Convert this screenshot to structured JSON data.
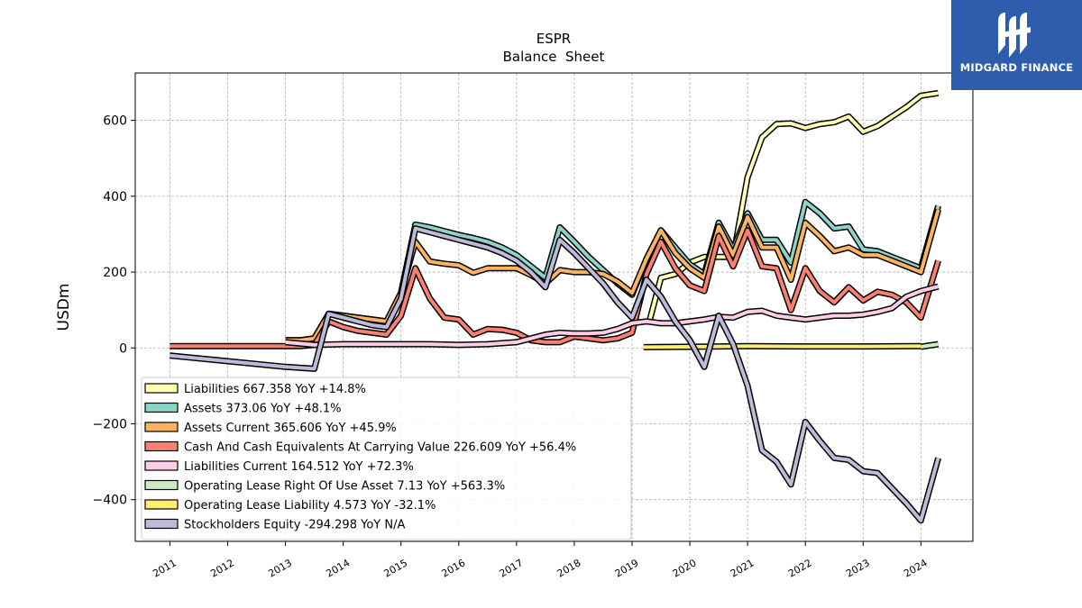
{
  "brand": {
    "name": "MIDGARD FINANCE",
    "logo_icon": "midgard-m-icon",
    "bg_color": "#2f5dad"
  },
  "chart_data": {
    "type": "line",
    "title": "ESPR",
    "subtitle": "Balance  Sheet",
    "xlabel": "",
    "ylabel": "USDm",
    "xlim": [
      2010.4,
      2024.9
    ],
    "ylim": [
      -510,
      725
    ],
    "yticks": [
      -400,
      -200,
      0,
      200,
      400,
      600
    ],
    "xticks": [
      "2011",
      "2012",
      "2013",
      "2014",
      "2015",
      "2016",
      "2017",
      "2018",
      "2019",
      "2020",
      "2021",
      "2022",
      "2023",
      "2024"
    ],
    "grid": true,
    "legend_position": "lower-left",
    "series": [
      {
        "name": "Liabilities",
        "legend": "Liabilities  667.358 YoY +14.8%",
        "color": "#ffffb3",
        "x": [
          2019.3,
          2019.5,
          2019.75,
          2020.0,
          2020.25,
          2020.5,
          2020.75,
          2021.0,
          2021.25,
          2021.5,
          2021.75,
          2022.0,
          2022.25,
          2022.5,
          2022.75,
          2023.0,
          2023.25,
          2023.5,
          2023.75,
          2024.0,
          2024.3
        ],
        "y": [
          70,
          185,
          195,
          225,
          240,
          240,
          240,
          450,
          555,
          590,
          592,
          580,
          590,
          595,
          610,
          570,
          585,
          610,
          635,
          665,
          672
        ]
      },
      {
        "name": "Assets",
        "legend": "Assets  373.06 YoY +48.1%",
        "color": "#8dd3c7",
        "x": [
          2013.0,
          2013.25,
          2013.5,
          2013.75,
          2014.0,
          2014.25,
          2014.5,
          2014.75,
          2015.0,
          2015.25,
          2015.5,
          2015.75,
          2016.0,
          2016.25,
          2016.5,
          2016.75,
          2017.0,
          2017.25,
          2017.5,
          2017.75,
          2018.0,
          2018.25,
          2018.5,
          2018.75,
          2019.0,
          2019.25,
          2019.5,
          2019.75,
          2020.0,
          2020.25,
          2020.5,
          2020.75,
          2021.0,
          2021.25,
          2021.5,
          2021.75,
          2022.0,
          2022.25,
          2022.5,
          2022.75,
          2023.0,
          2023.25,
          2023.5,
          2023.75,
          2024.0,
          2024.3
        ],
        "y": [
          20,
          20,
          25,
          90,
          85,
          80,
          75,
          70,
          145,
          325,
          318,
          308,
          298,
          290,
          280,
          265,
          245,
          215,
          185,
          318,
          280,
          240,
          205,
          170,
          140,
          235,
          310,
          265,
          220,
          195,
          330,
          260,
          355,
          285,
          285,
          225,
          385,
          355,
          315,
          320,
          260,
          255,
          240,
          225,
          210,
          375
        ]
      },
      {
        "name": "Assets Current",
        "legend": "Assets Current  365.606 YoY +45.9%",
        "color": "#fdb462",
        "x": [
          2013.0,
          2013.25,
          2013.5,
          2013.75,
          2014.0,
          2014.25,
          2014.5,
          2014.75,
          2015.0,
          2015.25,
          2015.5,
          2015.75,
          2016.0,
          2016.25,
          2016.5,
          2016.75,
          2017.0,
          2017.25,
          2017.5,
          2017.75,
          2018.0,
          2018.25,
          2018.5,
          2018.75,
          2019.0,
          2019.25,
          2019.5,
          2019.75,
          2020.0,
          2020.25,
          2020.5,
          2020.75,
          2021.0,
          2021.25,
          2021.5,
          2021.75,
          2022.0,
          2022.25,
          2022.5,
          2022.75,
          2023.0,
          2023.25,
          2023.5,
          2023.75,
          2024.0,
          2024.3
        ],
        "y": [
          20,
          20,
          25,
          90,
          85,
          80,
          75,
          70,
          145,
          280,
          228,
          222,
          218,
          198,
          210,
          210,
          210,
          192,
          170,
          205,
          200,
          200,
          195,
          175,
          145,
          235,
          310,
          250,
          210,
          185,
          320,
          245,
          345,
          265,
          265,
          180,
          330,
          295,
          255,
          265,
          245,
          245,
          230,
          215,
          200,
          365
        ]
      },
      {
        "name": "Cash And Cash Equivalents At Carrying Value",
        "legend": "Cash And Cash Equivalents At Carrying Value  226.609 YoY +56.4%",
        "color": "#fb8072",
        "x": [
          2011.0,
          2011.5,
          2012.0,
          2012.5,
          2013.0,
          2013.25,
          2013.5,
          2013.75,
          2014.0,
          2014.25,
          2014.5,
          2014.75,
          2015.0,
          2015.25,
          2015.5,
          2015.75,
          2016.0,
          2016.25,
          2016.5,
          2016.75,
          2017.0,
          2017.25,
          2017.5,
          2017.75,
          2018.0,
          2018.25,
          2018.5,
          2018.75,
          2019.0,
          2019.25,
          2019.5,
          2019.75,
          2020.0,
          2020.25,
          2020.5,
          2020.75,
          2021.0,
          2021.25,
          2021.5,
          2021.75,
          2022.0,
          2022.25,
          2022.5,
          2022.75,
          2023.0,
          2023.25,
          2023.5,
          2023.75,
          2024.0,
          2024.3
        ],
        "y": [
          5,
          5,
          5,
          5,
          5,
          5,
          8,
          70,
          55,
          45,
          40,
          35,
          85,
          210,
          130,
          80,
          75,
          35,
          50,
          48,
          40,
          20,
          15,
          15,
          30,
          25,
          20,
          25,
          40,
          195,
          280,
          210,
          165,
          150,
          295,
          215,
          310,
          215,
          210,
          100,
          210,
          150,
          120,
          160,
          125,
          148,
          140,
          120,
          80,
          230
        ]
      },
      {
        "name": "Liabilities Current",
        "legend": "Liabilities Current  164.512 YoY +72.3%",
        "color": "#fccde5",
        "x": [
          2013.0,
          2013.5,
          2014.0,
          2014.5,
          2015.0,
          2015.5,
          2016.0,
          2016.5,
          2017.0,
          2017.25,
          2017.5,
          2017.75,
          2018.0,
          2018.25,
          2018.5,
          2018.75,
          2019.0,
          2019.25,
          2019.5,
          2019.75,
          2020.0,
          2020.25,
          2020.5,
          2020.75,
          2021.0,
          2021.25,
          2021.5,
          2021.75,
          2022.0,
          2022.25,
          2022.5,
          2022.75,
          2023.0,
          2023.25,
          2023.5,
          2023.75,
          2024.0,
          2024.3
        ],
        "y": [
          15,
          8,
          10,
          10,
          10,
          10,
          8,
          10,
          15,
          25,
          35,
          40,
          38,
          38,
          40,
          50,
          65,
          70,
          65,
          65,
          70,
          75,
          82,
          80,
          95,
          98,
          85,
          80,
          75,
          80,
          85,
          85,
          88,
          95,
          105,
          135,
          150,
          162
        ]
      },
      {
        "name": "Operating Lease Right Of Use Asset",
        "legend": "Operating Lease Right Of Use Asset  7.13 YoY +563.3%",
        "color": "#ccebc5",
        "x": [
          2024.0,
          2024.3
        ],
        "y": [
          3,
          10
        ]
      },
      {
        "name": "Operating Lease Liability",
        "legend": "Operating Lease Liability  4.573 YoY -32.1%",
        "color": "#ffed6f",
        "x": [
          2019.2,
          2020.0,
          2021.0,
          2022.0,
          2023.0,
          2024.0
        ],
        "y": [
          2,
          3,
          5,
          4,
          4,
          5
        ]
      },
      {
        "name": "Stockholders Equity",
        "legend": "Stockholders Equity  -294.298 YoY N/A",
        "color": "#bebada",
        "x": [
          2011.0,
          2012.0,
          2013.0,
          2013.5,
          2013.75,
          2014.0,
          2014.25,
          2014.5,
          2014.75,
          2015.0,
          2015.25,
          2015.5,
          2015.75,
          2016.0,
          2016.25,
          2016.5,
          2016.75,
          2017.0,
          2017.25,
          2017.5,
          2017.75,
          2018.0,
          2018.25,
          2018.5,
          2018.75,
          2019.0,
          2019.25,
          2019.5,
          2019.75,
          2020.0,
          2020.25,
          2020.5,
          2020.75,
          2021.0,
          2021.25,
          2021.5,
          2021.75,
          2022.0,
          2022.25,
          2022.5,
          2022.75,
          2023.0,
          2023.25,
          2023.5,
          2023.75,
          2024.0,
          2024.3
        ],
        "y": [
          -20,
          -35,
          -50,
          -55,
          90,
          80,
          70,
          60,
          55,
          130,
          315,
          305,
          295,
          285,
          275,
          265,
          250,
          230,
          200,
          160,
          285,
          250,
          210,
          170,
          120,
          80,
          180,
          135,
          70,
          20,
          -50,
          85,
          10,
          -100,
          -270,
          -300,
          -360,
          -195,
          -245,
          -290,
          -295,
          -325,
          -330,
          -370,
          -410,
          -455,
          -290
        ]
      }
    ]
  }
}
